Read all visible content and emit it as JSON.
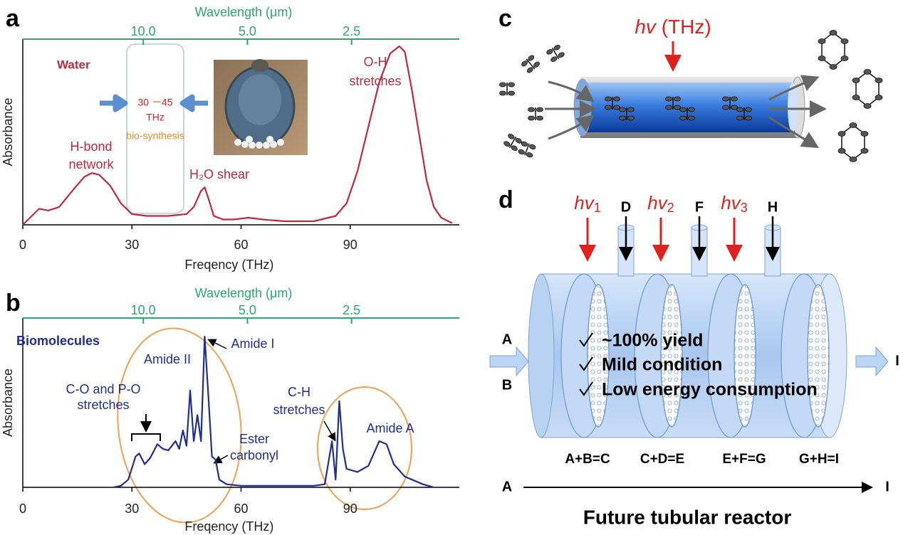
{
  "chart_data": [
    {
      "type": "line",
      "panel_label": "a",
      "x_label": "Freqency (THz)",
      "y_label": "Absorbance",
      "x2_label": "Wavelength (μm)",
      "x": [
        0,
        2,
        4.5,
        7,
        10,
        14,
        17,
        19,
        21,
        24,
        27,
        30,
        34,
        40,
        45,
        47,
        49,
        50,
        51,
        52.5,
        55,
        58,
        62,
        66,
        72,
        80,
        86,
        89,
        92,
        95,
        98,
        101,
        103.5,
        105,
        107,
        109,
        111,
        113,
        115,
        118
      ],
      "values": [
        0,
        0.04,
        0.09,
        0.08,
        0.1,
        0.2,
        0.27,
        0.29,
        0.28,
        0.22,
        0.12,
        0.06,
        0.05,
        0.05,
        0.06,
        0.1,
        0.19,
        0.21,
        0.15,
        0.05,
        0.03,
        0.03,
        0.04,
        0.03,
        0.02,
        0.02,
        0.05,
        0.12,
        0.3,
        0.55,
        0.8,
        0.96,
        1.0,
        0.97,
        0.75,
        0.5,
        0.25,
        0.1,
        0.04,
        0.01
      ],
      "color": "#c0283c",
      "xlim": [
        0,
        120
      ],
      "xticks": [
        0,
        30,
        60,
        90
      ],
      "x2lim": [
        22.3,
        1.22
      ],
      "x2log": true,
      "x2ticks": [
        {
          "value": 10,
          "label": "10.0"
        },
        {
          "value": 5,
          "label": "5.0"
        },
        2.5
      ],
      "ylim": [
        0,
        1.04
      ],
      "annotations": [
        "Water",
        "H-bond",
        "network",
        "H₂O shear",
        "O-H",
        "stretches",
        "30 －45",
        "THz",
        "bio-synthesis"
      ]
    },
    {
      "type": "line",
      "panel_label": "b",
      "x_label": "Freqency (THz)",
      "y_label": "Absorbance",
      "x2_label": "Wavelength (μm)",
      "x": [
        25,
        27,
        29,
        31,
        32,
        33.5,
        35,
        37,
        38.5,
        40,
        42,
        43,
        44,
        45,
        46,
        47,
        48,
        49,
        50,
        51,
        52,
        53,
        54,
        56,
        60,
        70,
        80,
        83,
        85,
        86,
        87,
        88,
        89,
        92,
        95,
        98,
        100,
        102,
        105,
        110,
        113
      ],
      "values": [
        0,
        0.01,
        0.05,
        0.2,
        0.22,
        0.15,
        0.19,
        0.28,
        0.25,
        0.24,
        0.3,
        0.25,
        0.37,
        0.27,
        0.63,
        0.3,
        0.47,
        0.3,
        0.98,
        0.6,
        0.2,
        0.18,
        0.05,
        0.02,
        0.01,
        0.01,
        0.01,
        0.02,
        0.3,
        0.05,
        0.56,
        0.25,
        0.12,
        0.1,
        0.14,
        0.3,
        0.28,
        0.15,
        0.07,
        0.02,
        0
      ],
      "color": "#1f2f8f",
      "xlim": [
        0,
        120
      ],
      "xticks": [
        0,
        30,
        60,
        90
      ],
      "x2lim": [
        22.3,
        1.22
      ],
      "x2log": true,
      "x2ticks": [
        {
          "value": 10,
          "label": "10.0"
        },
        {
          "value": 5,
          "label": "5.0"
        },
        2.5
      ],
      "ylim": [
        0,
        1.1
      ],
      "annotations": [
        "Biomolecules",
        "Amide II",
        "Amide I",
        "C-O and P-O",
        "stretches",
        "Ester",
        "carbonyl",
        "C-H",
        "stretches",
        "Amide A"
      ]
    }
  ],
  "panel_c": {
    "label": "c",
    "light": {
      "symbol": "hv",
      "unit": "(THz)"
    }
  },
  "panel_d": {
    "label": "d",
    "lights": [
      {
        "symbol": "hv",
        "sub": "1"
      },
      {
        "symbol": "hv",
        "sub": "2"
      },
      {
        "symbol": "hv",
        "sub": "3"
      }
    ],
    "feeds": [
      "D",
      "F",
      "H"
    ],
    "inputs": [
      "A",
      "B"
    ],
    "output": "I",
    "features": [
      "~100% yield",
      "Mild condition",
      "Low energy consumption"
    ],
    "reactions": [
      "A+B=C",
      "C+D=E",
      "E+F=G",
      "G+H=I"
    ],
    "flow": {
      "start": "A",
      "end": "I"
    },
    "caption": "Future tubular reactor"
  }
}
